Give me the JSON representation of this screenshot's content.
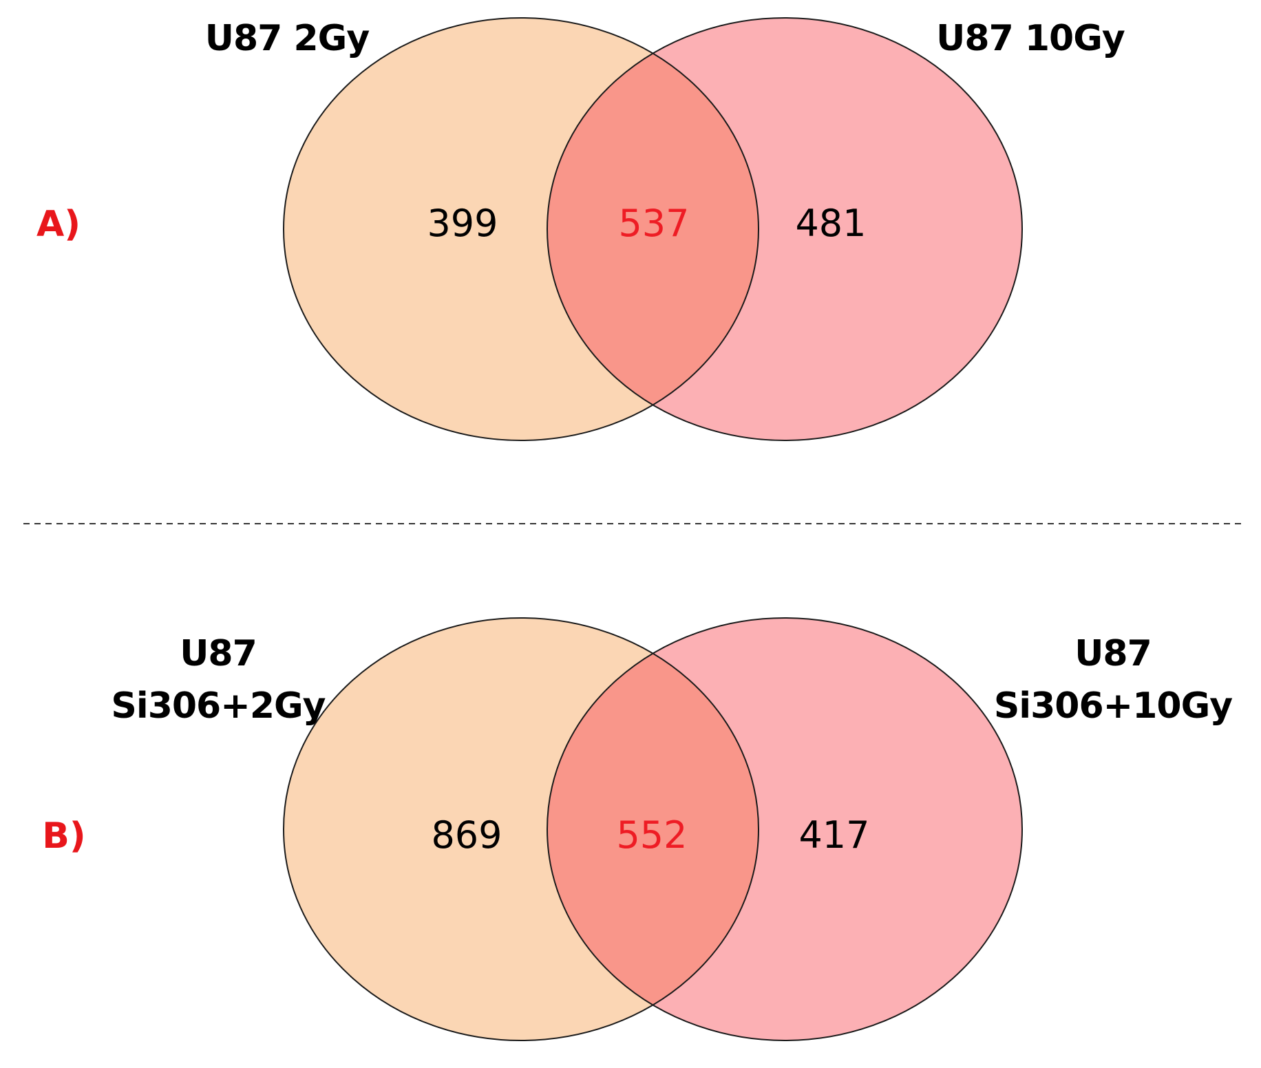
{
  "colors": {
    "left_set_fill": "#fbd6b4",
    "right_set_fill": "#fcb0b4",
    "overlap_fill": "#f9968a",
    "outline": "#1a1a1a",
    "panel_label": "#e8161b",
    "overlap_count": "#ee1c24",
    "count": "#000000",
    "divider": "#333333"
  },
  "panels": [
    {
      "label": "A)",
      "left_set": {
        "name_lines": [
          "U87 2Gy"
        ],
        "only_count": "399"
      },
      "right_set": {
        "name_lines": [
          "U87 10Gy"
        ],
        "only_count": "481"
      },
      "overlap_count": "537"
    },
    {
      "label": "B)",
      "left_set": {
        "name_lines": [
          "U87",
          "Si306+2Gy"
        ],
        "only_count": "869"
      },
      "right_set": {
        "name_lines": [
          "U87",
          "Si306+10Gy"
        ],
        "only_count": "417"
      },
      "overlap_count": "552"
    }
  ]
}
